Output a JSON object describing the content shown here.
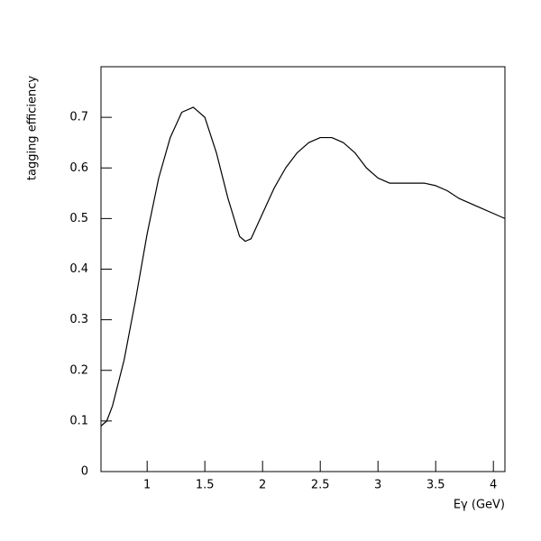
{
  "chart_data": {
    "type": "line",
    "xlabel": "Eγ (GeV)",
    "ylabel": "tagging efficiency",
    "x": [
      0.6,
      0.65,
      0.7,
      0.8,
      0.9,
      1.0,
      1.1,
      1.2,
      1.3,
      1.4,
      1.5,
      1.6,
      1.7,
      1.8,
      1.85,
      1.9,
      2.0,
      2.1,
      2.2,
      2.3,
      2.4,
      2.5,
      2.6,
      2.7,
      2.8,
      2.9,
      3.0,
      3.1,
      3.2,
      3.3,
      3.4,
      3.5,
      3.6,
      3.7,
      3.8,
      3.9,
      4.0,
      4.1
    ],
    "values": [
      0.09,
      0.1,
      0.13,
      0.22,
      0.34,
      0.47,
      0.58,
      0.66,
      0.71,
      0.72,
      0.7,
      0.63,
      0.54,
      0.465,
      0.455,
      0.46,
      0.51,
      0.56,
      0.6,
      0.63,
      0.65,
      0.66,
      0.66,
      0.65,
      0.63,
      0.6,
      0.58,
      0.57,
      0.57,
      0.57,
      0.57,
      0.565,
      0.555,
      0.54,
      0.53,
      0.52,
      0.51,
      0.5
    ],
    "color": "#000000",
    "xlim": [
      0.6,
      4.1
    ],
    "xticks": [
      1,
      1.5,
      2,
      2.5,
      3,
      3.5,
      4
    ],
    "ylim": [
      0,
      0.8
    ],
    "yticks": [
      0,
      0.1,
      0.2,
      0.3,
      0.4,
      0.5,
      0.6,
      0.7
    ]
  }
}
